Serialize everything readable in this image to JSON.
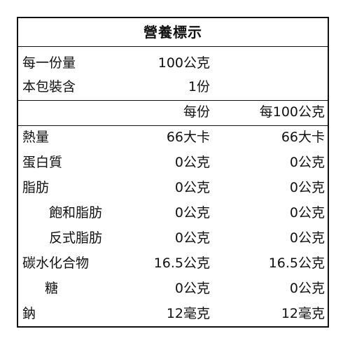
{
  "label": {
    "title": "營養標示",
    "serving_size_label": "每一份量",
    "serving_size_value": "100公克",
    "servings_label": "本包裝含",
    "servings_value": "1份",
    "col_per_serving": "每份",
    "col_per_100g": "每100公克",
    "nutrients": [
      {
        "name": "熱量",
        "per_serving": "66大卡",
        "per_100g": "66大卡"
      },
      {
        "name": "蛋白質",
        "per_serving": "0公克",
        "per_100g": "0公克"
      },
      {
        "name": "脂肪",
        "per_serving": "0公克",
        "per_100g": "0公克"
      },
      {
        "name": "飽和脂肪",
        "per_serving": "0公克",
        "per_100g": "0公克"
      },
      {
        "name": "反式脂肪",
        "per_serving": "0公克",
        "per_100g": "0公克"
      },
      {
        "name": "碳水化合物",
        "per_serving": "16.5公克",
        "per_100g": "16.5公克"
      },
      {
        "name": "糖",
        "per_serving": "0公克",
        "per_100g": "0公克"
      },
      {
        "name": "鈉",
        "per_serving": "12毫克",
        "per_100g": "12毫克"
      }
    ]
  }
}
